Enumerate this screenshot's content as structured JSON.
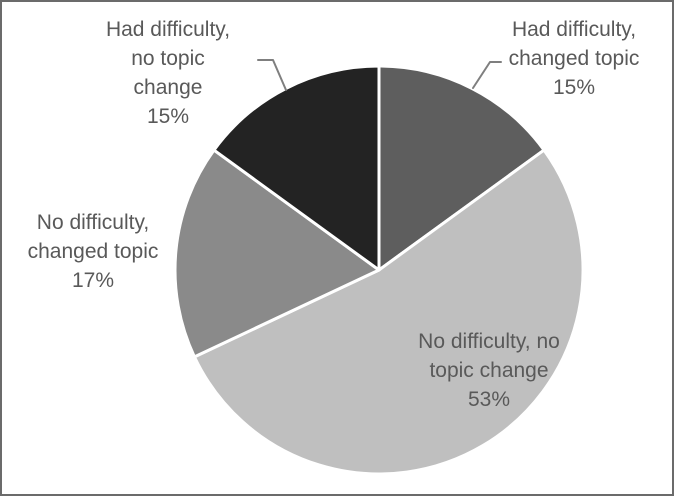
{
  "figure": {
    "background": "#ffffff",
    "border_color": "#6b6b6b"
  },
  "chart_data": {
    "type": "pie",
    "title": "",
    "start_angle_deg": 0,
    "direction": "clockwise",
    "grid": false,
    "legend": "none (direct labels with leader lines)",
    "separator_color": "#ffffff",
    "leader_line_color": "#7f7f7f",
    "label_text_color": "#595959",
    "categories": [
      "Had difficulty, changed topic",
      "No difficulty, no topic change",
      "No difficulty, changed topic",
      "Had difficulty, no topic change"
    ],
    "values": [
      15,
      53,
      17,
      15
    ],
    "slices": [
      {
        "label": "Had difficulty, changed topic",
        "value_pct": 15,
        "color": "#5e5e5e",
        "label_display": "Had difficulty,\nchanged topic\n15%",
        "label_position": "outside-top-right"
      },
      {
        "label": "No difficulty, no topic change",
        "value_pct": 53,
        "color": "#bfbfbf",
        "label_display": "No difficulty, no\ntopic change\n53%",
        "label_position": "inside-bottom-right"
      },
      {
        "label": "No difficulty, changed topic",
        "value_pct": 17,
        "color": "#8a8a8a",
        "label_display": "No difficulty,\nchanged topic\n17%",
        "label_position": "outside-left"
      },
      {
        "label": "Had difficulty, no topic change",
        "value_pct": 15,
        "color": "#232323",
        "label_display": "Had difficulty,\nno topic\nchange\n15%",
        "label_position": "outside-top-left"
      }
    ]
  }
}
